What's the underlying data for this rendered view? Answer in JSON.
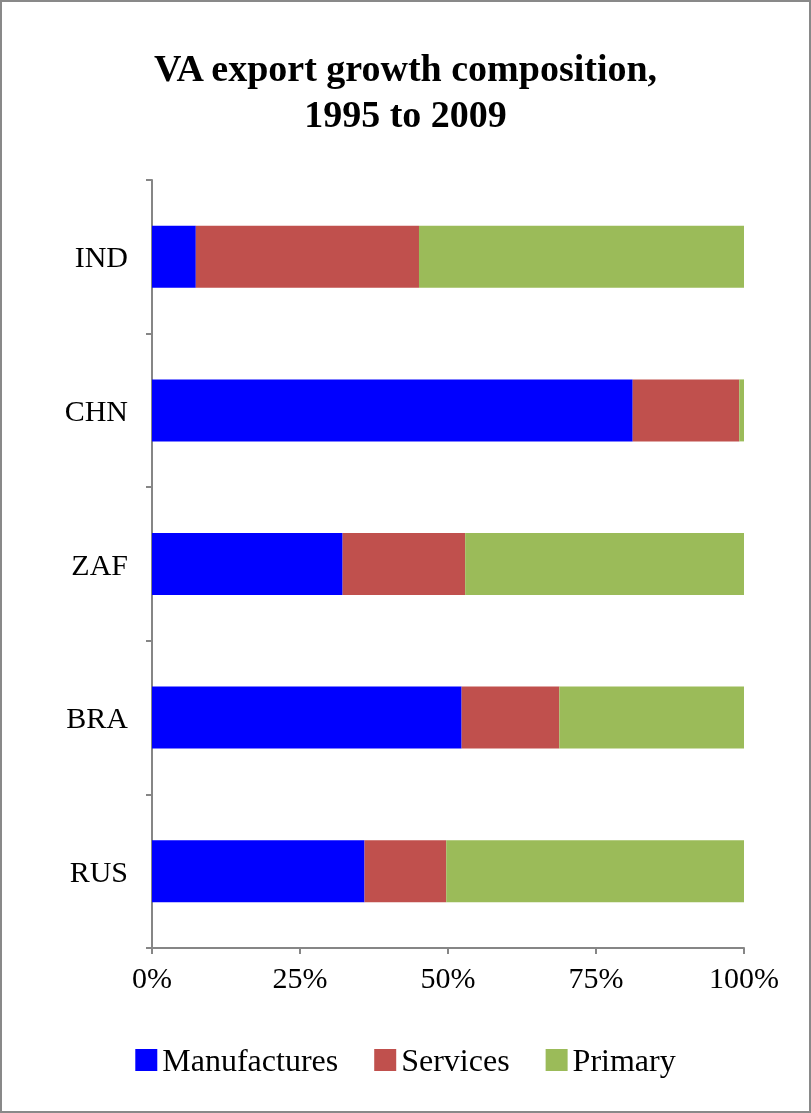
{
  "chart_data": {
    "type": "bar",
    "title": "VA export growth composition,\n1995 to 2009",
    "orientation": "horizontal",
    "stacked": true,
    "categories": [
      "IND",
      "CHN",
      "ZAF",
      "BRA",
      "RUS"
    ],
    "series": [
      {
        "name": "Manufactures",
        "color": "#0000ff",
        "values": [
          7.4,
          81.2,
          32.2,
          52.3,
          35.9
        ]
      },
      {
        "name": "Services",
        "color": "#c0504d",
        "values": [
          37.7,
          18.0,
          20.7,
          16.5,
          13.8
        ]
      },
      {
        "name": "Primary",
        "color": "#9bbb59",
        "values": [
          54.9,
          0.8,
          47.1,
          31.2,
          50.3
        ]
      }
    ],
    "xlim": [
      0,
      100
    ],
    "xticks": [
      {
        "value": 0,
        "label": "0%"
      },
      {
        "value": 25,
        "label": "25%"
      },
      {
        "value": 50,
        "label": "50%"
      },
      {
        "value": 75,
        "label": "75%"
      },
      {
        "value": 100,
        "label": "100%"
      }
    ],
    "grid": false,
    "legend": "bottom"
  }
}
